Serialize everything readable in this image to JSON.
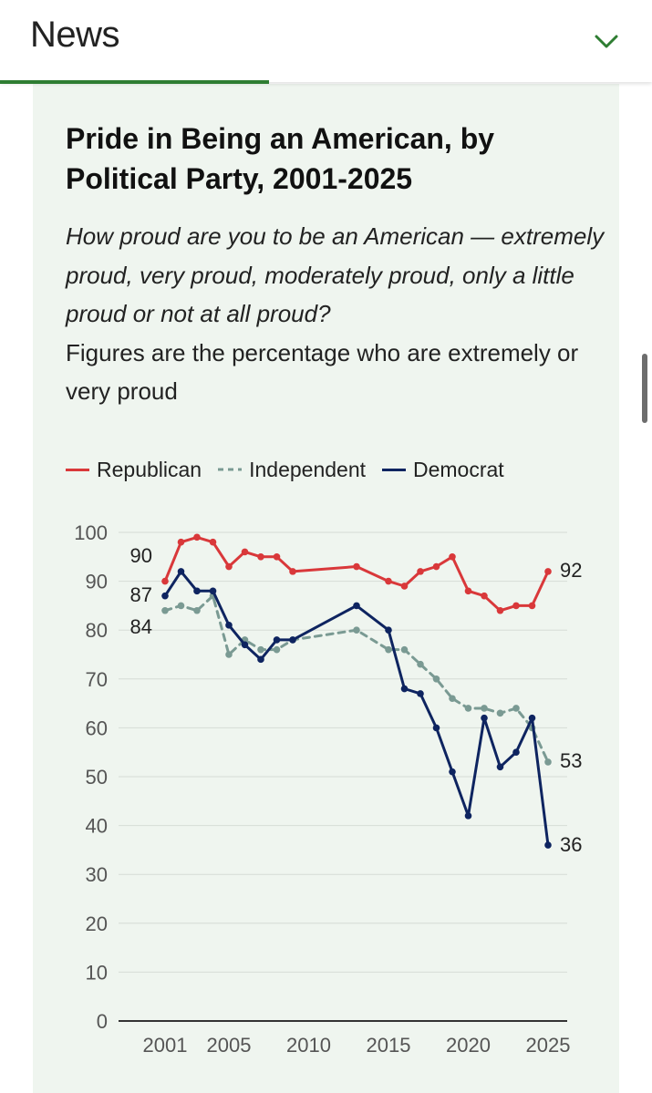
{
  "header": {
    "title": "News",
    "chevron_icon": "chevron-down-icon"
  },
  "colors": {
    "accent": "#2e7d32",
    "card_bg": "#eff5ef",
    "republican": "#d9383a",
    "independent": "#7a9a93",
    "democrat": "#0e2460"
  },
  "chart_data": {
    "type": "line",
    "title": "Pride in Being an American, by Political Party, 2001-2025",
    "subtitle_question": "How proud are you to be an American — extremely proud, very proud, moderately proud, only a little proud or not at all proud?",
    "subtitle_note": "Figures are the percentage who are extremely or very proud",
    "xlabel": "",
    "ylabel": "",
    "xlim": [
      2001,
      2025
    ],
    "ylim": [
      0,
      100
    ],
    "yticks": [
      100,
      90,
      80,
      70,
      60,
      50,
      40,
      30,
      20,
      10,
      0
    ],
    "xticks": [
      2001,
      2005,
      2010,
      2015,
      2020,
      2025
    ],
    "legend": "top",
    "series": [
      {
        "name": "Republican",
        "style": "solid",
        "x": [
          2001,
          2002,
          2003,
          2004,
          2005,
          2006,
          2007,
          2008,
          2009,
          2013,
          2015,
          2016,
          2017,
          2018,
          2019,
          2020,
          2021,
          2022,
          2023,
          2024,
          2025
        ],
        "y": [
          90,
          98,
          99,
          98,
          93,
          96,
          95,
          95,
          92,
          93,
          90,
          89,
          92,
          93,
          95,
          88,
          87,
          84,
          85,
          85,
          92
        ]
      },
      {
        "name": "Independent",
        "style": "dashed",
        "x": [
          2001,
          2002,
          2003,
          2004,
          2005,
          2006,
          2007,
          2008,
          2009,
          2013,
          2015,
          2016,
          2017,
          2018,
          2019,
          2020,
          2021,
          2022,
          2023,
          2024,
          2025
        ],
        "y": [
          84,
          85,
          84,
          87,
          75,
          78,
          76,
          76,
          78,
          80,
          76,
          76,
          73,
          70,
          66,
          64,
          64,
          63,
          64,
          60,
          53
        ]
      },
      {
        "name": "Democrat",
        "style": "solid",
        "x": [
          2001,
          2002,
          2003,
          2004,
          2005,
          2006,
          2007,
          2008,
          2009,
          2013,
          2015,
          2016,
          2017,
          2018,
          2019,
          2020,
          2021,
          2022,
          2023,
          2024,
          2025
        ],
        "y": [
          87,
          92,
          88,
          88,
          81,
          77,
          74,
          78,
          78,
          85,
          80,
          68,
          67,
          60,
          51,
          42,
          62,
          52,
          55,
          62,
          36
        ]
      }
    ],
    "start_labels": [
      "90",
      "87",
      "84"
    ],
    "end_labels": [
      "92",
      "53",
      "36"
    ]
  }
}
